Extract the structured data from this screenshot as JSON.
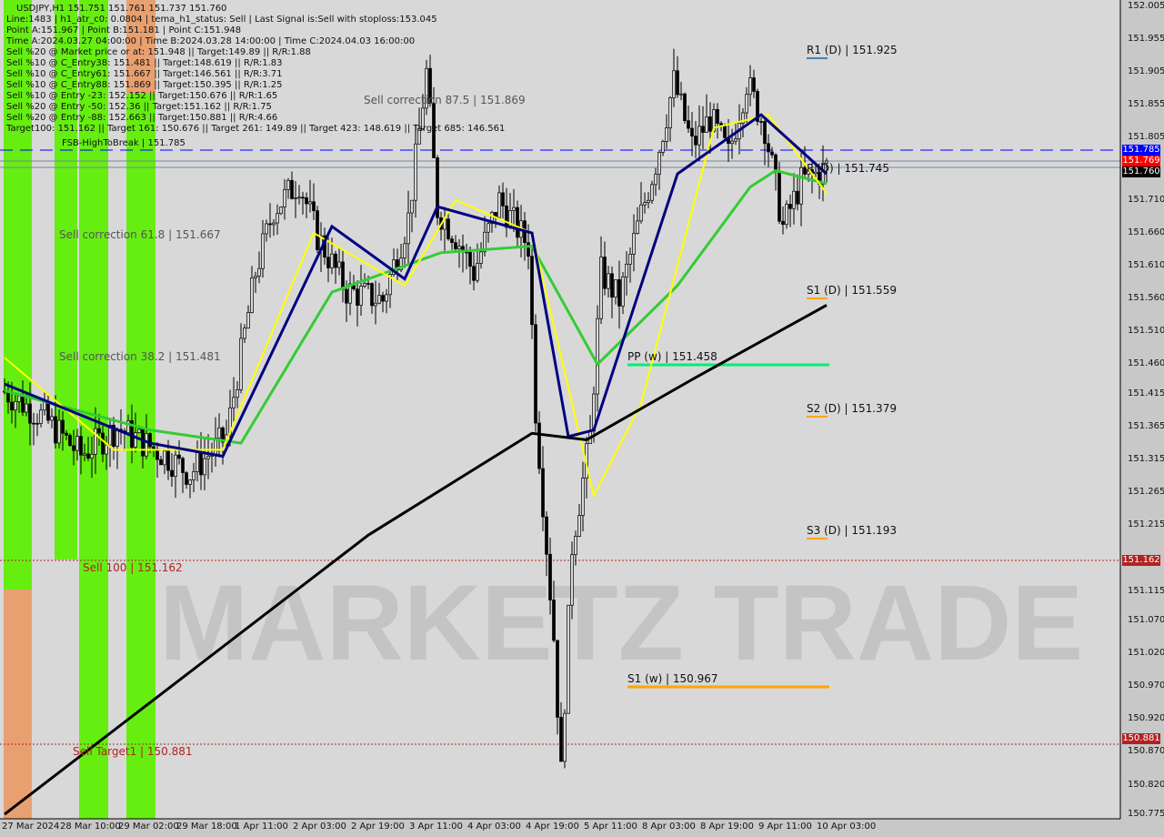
{
  "header": {
    "symbol_line": "USDJPY,H1  151.751 151.761 151.737 151.760",
    "lines": [
      "Line:1483 | h1_atr_c0: 0.0804 | tema_h1_status: Sell | Last Signal is:Sell with stoploss:153.045",
      "Point A:151.967 | Point B:151.181 | Point C:151.948",
      "Time A:2024.03.27 04:00:00 | Time B:2024.03.28 14:00:00 | Time C:2024.04.03 16:00:00",
      "Sell %20 @ Market price or at: 151.948 || Target:149.89 || R/R:1.88",
      "Sell %10 @ C_Entry38: 151.481 || Target:148.619 || R/R:1.83",
      "Sell %10 @ C_Entry61: 151.667 || Target:146.561 || R/R:3.71",
      "Sell %10 @ C_Entry88: 151.869 || Target:150.395 || R/R:1.25",
      "Sell %10 @ Entry -23: 152.152 || Target:150.676 || R/R:1.65",
      "Sell %20 @ Entry -50: 152.36 || Target:151.162 || R/R:1.75",
      "Sell %20 @ Entry -88: 152.663 || Target:150.881 || R/R:4.66",
      "Target100: 151.162 || Target 161: 150.676 || Target 261: 149.89 || Target 423: 148.619 || Target 685: 146.561"
    ]
  },
  "levels": {
    "fsb": "FSB-HighToBreak | 151.785",
    "sc875": "Sell correction 87.5 | 151.869",
    "sc618": "Sell correction 61.8 | 151.667",
    "sc382": "Sell correction 38.2 | 151.481",
    "s100": "Sell 100 | 151.162",
    "st1": "Sell Target1 | 150.881",
    "r1d": "R1 (D) | 151.925",
    "pd": "P (D) | 151.745",
    "s1d": "S1 (D) | 151.559",
    "s2d": "S2 (D) | 151.379",
    "s3d": "S3 (D) | 151.193",
    "ppw": "PP (w) | 151.458",
    "s1w": "S1 (w) | 150.967"
  },
  "watermark": "MARKETZ TRADE",
  "chart_data": {
    "type": "candlestick",
    "symbol": "USDJPY",
    "timeframe": "H1",
    "ylim": [
      150.775,
      152.005
    ],
    "y_ticks": [
      "152.005",
      "151.955",
      "151.905",
      "151.855",
      "151.805",
      "151.710",
      "151.660",
      "151.610",
      "151.560",
      "151.510",
      "151.460",
      "151.415",
      "151.365",
      "151.315",
      "151.265",
      "151.215",
      "151.115",
      "151.070",
      "151.020",
      "150.970",
      "150.920",
      "150.870",
      "150.820",
      "150.775"
    ],
    "price_tags": [
      {
        "text": "151.785",
        "color": "#0000ff"
      },
      {
        "text": "151.769",
        "color": "#ff0000"
      },
      {
        "text": "151.760",
        "color": "#000000"
      },
      {
        "text": "151.162",
        "color": "#b22222"
      },
      {
        "text": "150.881",
        "color": "#b22222"
      }
    ],
    "x_ticks": [
      "27 Mar 2024",
      "28 Mar 10:00",
      "29 Mar 02:00",
      "29 Mar 18:00",
      "1 Apr 11:00",
      "2 Apr 03:00",
      "2 Apr 19:00",
      "3 Apr 11:00",
      "4 Apr 03:00",
      "4 Apr 19:00",
      "5 Apr 11:00",
      "8 Apr 03:00",
      "8 Apr 19:00",
      "9 Apr 11:00",
      "10 Apr 03:00"
    ],
    "close_path": [
      [
        0,
        151.419
      ],
      [
        11,
        151.378
      ],
      [
        21,
        151.322
      ],
      [
        31,
        151.364
      ],
      [
        44,
        151.322
      ],
      [
        51,
        151.294
      ],
      [
        61,
        151.35
      ],
      [
        69,
        151.6
      ],
      [
        74,
        151.696
      ],
      [
        81,
        151.738
      ],
      [
        86,
        151.655
      ],
      [
        94,
        151.572
      ],
      [
        104,
        151.558
      ],
      [
        111,
        151.682
      ],
      [
        116,
        151.904
      ],
      [
        119,
        151.696
      ],
      [
        124,
        151.655
      ],
      [
        129,
        151.6
      ],
      [
        136,
        151.71
      ],
      [
        144,
        151.641
      ],
      [
        146,
        151.391
      ],
      [
        151,
        151.045
      ],
      [
        153,
        150.837
      ],
      [
        156,
        151.184
      ],
      [
        161,
        151.35
      ],
      [
        164,
        151.6
      ],
      [
        169,
        151.558
      ],
      [
        174,
        151.669
      ],
      [
        179,
        151.766
      ],
      [
        184,
        151.89
      ],
      [
        189,
        151.793
      ],
      [
        194,
        151.835
      ],
      [
        199,
        151.779
      ],
      [
        204,
        151.89
      ],
      [
        209,
        151.821
      ],
      [
        214,
        151.669
      ],
      [
        219,
        151.738
      ],
      [
        224,
        151.752
      ],
      [
        226,
        151.76
      ]
    ],
    "ma_black": [
      [
        0,
        150.775
      ],
      [
        60,
        151.03
      ],
      [
        100,
        151.2
      ],
      [
        145,
        151.355
      ],
      [
        160,
        151.345
      ],
      [
        190,
        151.44
      ],
      [
        226,
        151.55
      ]
    ],
    "ma_green": [
      [
        0,
        151.42
      ],
      [
        40,
        151.36
      ],
      [
        65,
        151.34
      ],
      [
        90,
        151.57
      ],
      [
        120,
        151.63
      ],
      [
        145,
        151.64
      ],
      [
        163,
        151.46
      ],
      [
        185,
        151.58
      ],
      [
        205,
        151.73
      ],
      [
        212,
        151.755
      ],
      [
        226,
        151.735
      ]
    ],
    "ma_yellow": [
      [
        0,
        151.47
      ],
      [
        30,
        151.33
      ],
      [
        60,
        151.33
      ],
      [
        85,
        151.66
      ],
      [
        110,
        151.58
      ],
      [
        124,
        151.71
      ],
      [
        145,
        151.66
      ],
      [
        162,
        151.26
      ],
      [
        175,
        151.4
      ],
      [
        195,
        151.82
      ],
      [
        210,
        151.84
      ],
      [
        226,
        151.72
      ]
    ],
    "ma_navy": [
      [
        0,
        151.43
      ],
      [
        40,
        151.34
      ],
      [
        60,
        151.32
      ],
      [
        90,
        151.67
      ],
      [
        110,
        151.59
      ],
      [
        119,
        151.7
      ],
      [
        145,
        151.66
      ],
      [
        155,
        151.35
      ],
      [
        162,
        151.36
      ],
      [
        185,
        151.75
      ],
      [
        208,
        151.84
      ],
      [
        226,
        151.75
      ]
    ],
    "colors": {
      "bull": "#000000",
      "bear": "#000000",
      "ma200": "#000000",
      "green": "#33cc33",
      "yellow": "#ffff00",
      "navy": "#000080",
      "zone_green": "#66ee11",
      "zone_orange": "#e8a070"
    }
  }
}
